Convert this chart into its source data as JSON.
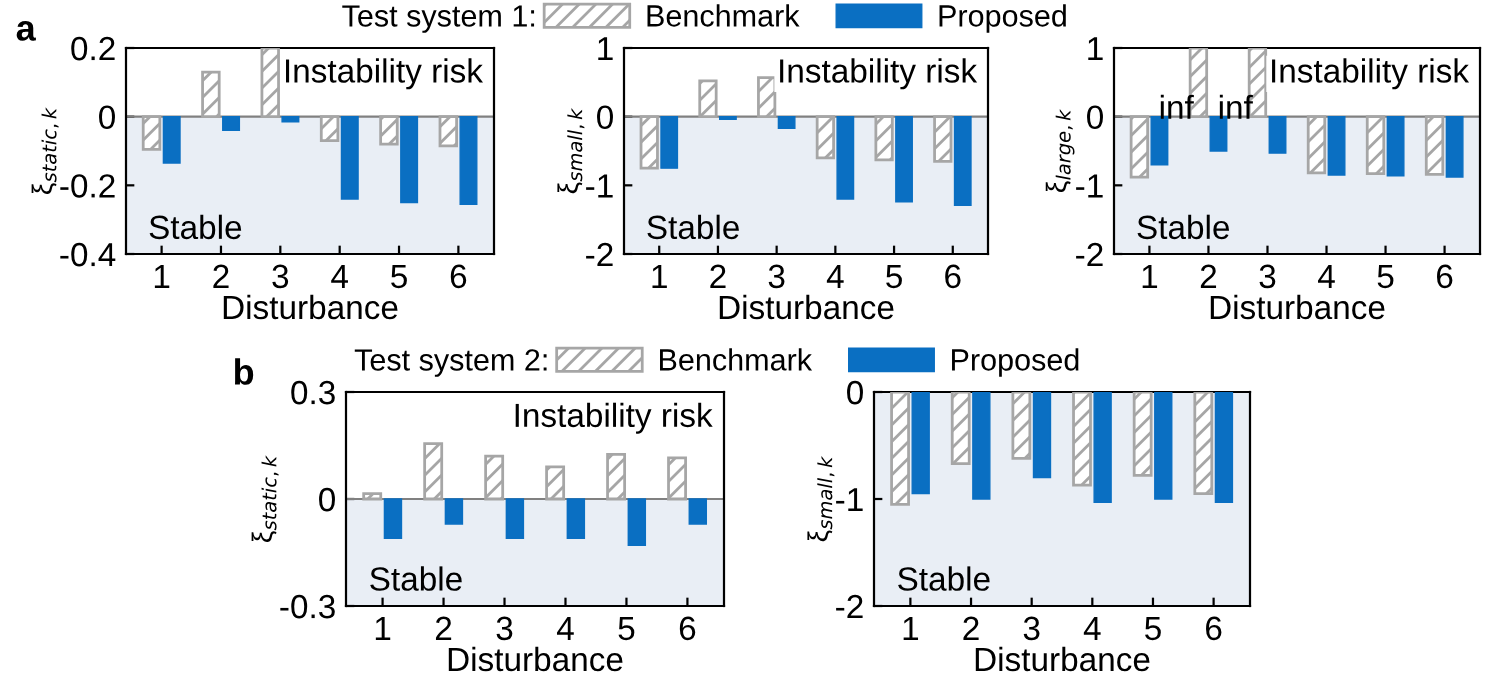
{
  "chart_data": [
    {
      "type": "bar",
      "title": "a",
      "xlabel": "Disturbance",
      "ylabel": "ξ$_{static,k}$",
      "categories": [
        "1",
        "2",
        "3",
        "4",
        "5",
        "6"
      ],
      "series": [
        {
          "color": "#a6a6a6",
          "values": [
            -0.095,
            0.13,
            0.2,
            -0.07,
            -0.08,
            -0.085
          ]
        },
        {
          "color": "#0a6fc2",
          "values": [
            -0.135,
            -0.04,
            -0.015,
            -0.24,
            -0.25,
            -0.255
          ]
        }
      ],
      "ref_lines": [
        {
          "axis": "y",
          "value": 0,
          "color": "#808080"
        }
      ],
      "ylim": [
        -0.4,
        0.2
      ],
      "yticks": [
        -0.4,
        -0.2,
        0,
        0.2
      ],
      "annotations": [
        "Instability risk"
      ],
      "bands": [
        {
          "axis": "y",
          "from": -0.4,
          "to": 0,
          "label": "Stable",
          "color": "#e9eef5"
        }
      ],
      "grid": false,
      "legend": false
    },
    {
      "type": "bar",
      "xlabel": "Disturbance",
      "ylabel": "ξ$_{small,k}$",
      "categories": [
        "1",
        "2",
        "3",
        "4",
        "5",
        "6"
      ],
      "legend_title": "Test system 1:",
      "series": [
        {
          "name": "Benchmark",
          "color": "#a6a6a6",
          "values": [
            -0.75,
            0.52,
            0.57,
            -0.6,
            -0.63,
            -0.65
          ]
        },
        {
          "name": "Proposed",
          "color": "#0a6fc2",
          "values": [
            -0.75,
            -0.04,
            -0.17,
            -1.2,
            -1.24,
            -1.29
          ]
        }
      ],
      "ref_lines": [
        {
          "axis": "y",
          "value": 0,
          "color": "#808080"
        }
      ],
      "ylim": [
        -2,
        1
      ],
      "yticks": [
        -2,
        -1,
        0,
        1
      ],
      "annotations": [
        "Instability risk"
      ],
      "bands": [
        {
          "axis": "y",
          "from": -2,
          "to": 0,
          "label": "Stable",
          "color": "#e9eef5"
        }
      ],
      "grid": false,
      "legend": "top"
    },
    {
      "type": "bar",
      "xlabel": "Disturbance",
      "ylabel": "ξ$_{large,k}$",
      "categories": [
        "1",
        "2",
        "3",
        "4",
        "5",
        "6"
      ],
      "series": [
        {
          "color": "#a6a6a6",
          "values": [
            -0.88,
            1,
            1,
            -0.82,
            -0.83,
            -0.84
          ]
        },
        {
          "color": "#0a6fc2",
          "values": [
            -0.7,
            -0.5,
            -0.53,
            -0.85,
            -0.86,
            -0.88
          ]
        }
      ],
      "ref_lines": [
        {
          "axis": "y",
          "value": 0,
          "color": "#808080"
        }
      ],
      "ylim": [
        -2,
        1
      ],
      "yticks": [
        -2,
        -1,
        0,
        1
      ],
      "annotations": [
        "Instability risk",
        {
          "text": "inf",
          "x": "2",
          "y": 1
        },
        {
          "text": "inf",
          "x": "3",
          "y": 1
        }
      ],
      "bands": [
        {
          "axis": "y",
          "from": -2,
          "to": 0,
          "label": "Stable",
          "color": "#e9eef5"
        }
      ],
      "grid": false,
      "legend": false
    },
    {
      "type": "bar",
      "title": "b",
      "xlabel": "Disturbance",
      "ylabel": "ξ$_{static,k}$",
      "categories": [
        "1",
        "2",
        "3",
        "4",
        "5",
        "6"
      ],
      "legend_title": "Test system 2:",
      "series": [
        {
          "name": "Benchmark",
          "color": "#a6a6a6",
          "values": [
            0.015,
            0.155,
            0.12,
            0.09,
            0.125,
            0.115
          ]
        },
        {
          "name": "Proposed",
          "color": "#0a6fc2",
          "values": [
            -0.11,
            -0.07,
            -0.11,
            -0.11,
            -0.13,
            -0.07
          ]
        }
      ],
      "ref_lines": [
        {
          "axis": "y",
          "value": 0,
          "color": "#808080"
        }
      ],
      "ylim": [
        -0.3,
        0.3
      ],
      "yticks": [
        -0.3,
        0,
        0.3
      ],
      "annotations": [
        "Instability risk"
      ],
      "bands": [
        {
          "axis": "y",
          "from": -0.3,
          "to": 0,
          "label": "Stable",
          "color": "#e9eef5"
        }
      ],
      "grid": false,
      "legend": "top right"
    },
    {
      "type": "bar",
      "xlabel": "Disturbance",
      "ylabel": "ξ$_{small,k}$",
      "categories": [
        "1",
        "2",
        "3",
        "4",
        "5",
        "6"
      ],
      "series": [
        {
          "color": "#a6a6a6",
          "values": [
            -1.05,
            -0.67,
            -0.62,
            -0.87,
            -0.78,
            -0.95
          ]
        },
        {
          "color": "#0a6fc2",
          "values": [
            -0.95,
            -1.0,
            -0.8,
            -1.03,
            -1.0,
            -1.03
          ]
        }
      ],
      "ylim": [
        -2,
        0
      ],
      "yticks": [
        -2,
        -1,
        0
      ],
      "bands": [
        {
          "axis": "y",
          "from": -2,
          "to": 0,
          "label": "Stable",
          "color": "#e9eef5"
        }
      ],
      "grid": false,
      "legend": false
    }
  ]
}
